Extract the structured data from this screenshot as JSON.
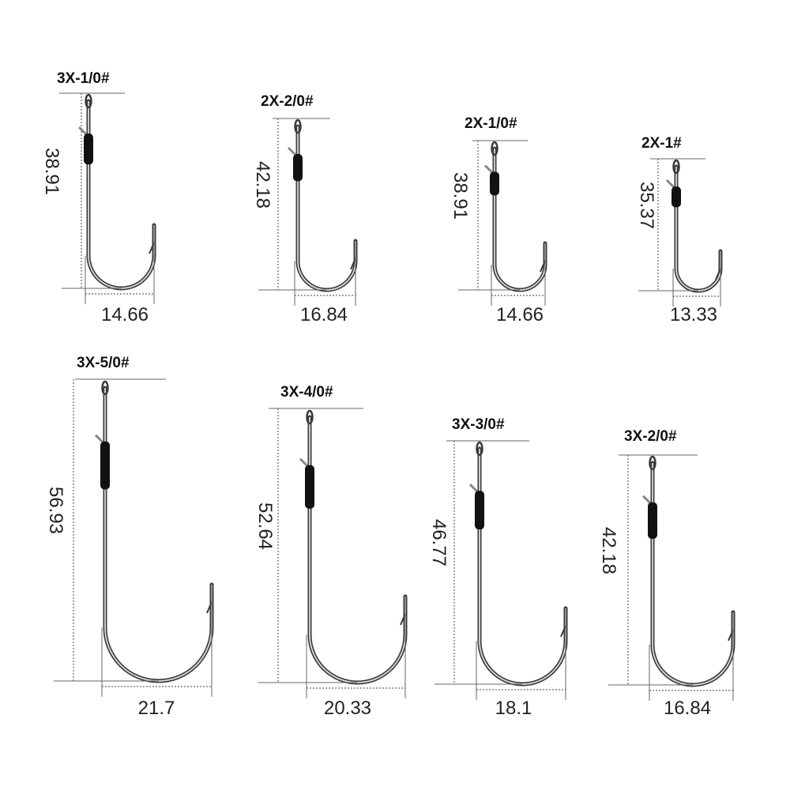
{
  "hooks": [
    {
      "size": "3X-1/0#",
      "length": "38.91",
      "width": "14.66"
    },
    {
      "size": "2X-2/0#",
      "length": "42.18",
      "width": "16.84"
    },
    {
      "size": "2X-1/0#",
      "length": "38.91",
      "width": "14.66"
    },
    {
      "size": "2X-1#",
      "length": "35.37",
      "width": "13.33"
    },
    {
      "size": "3X-5/0#",
      "length": "56.93",
      "width": "21.7"
    },
    {
      "size": "3X-4/0#",
      "length": "52.64",
      "width": "20.33"
    },
    {
      "size": "3X-3/0#",
      "length": "46.77",
      "width": "18.1"
    },
    {
      "size": "3X-2/0#",
      "length": "42.18",
      "width": "16.84"
    }
  ],
  "colors": {
    "hook": "#3a3a3a",
    "sleeve": "#111111",
    "dimension_line": "#666666"
  }
}
